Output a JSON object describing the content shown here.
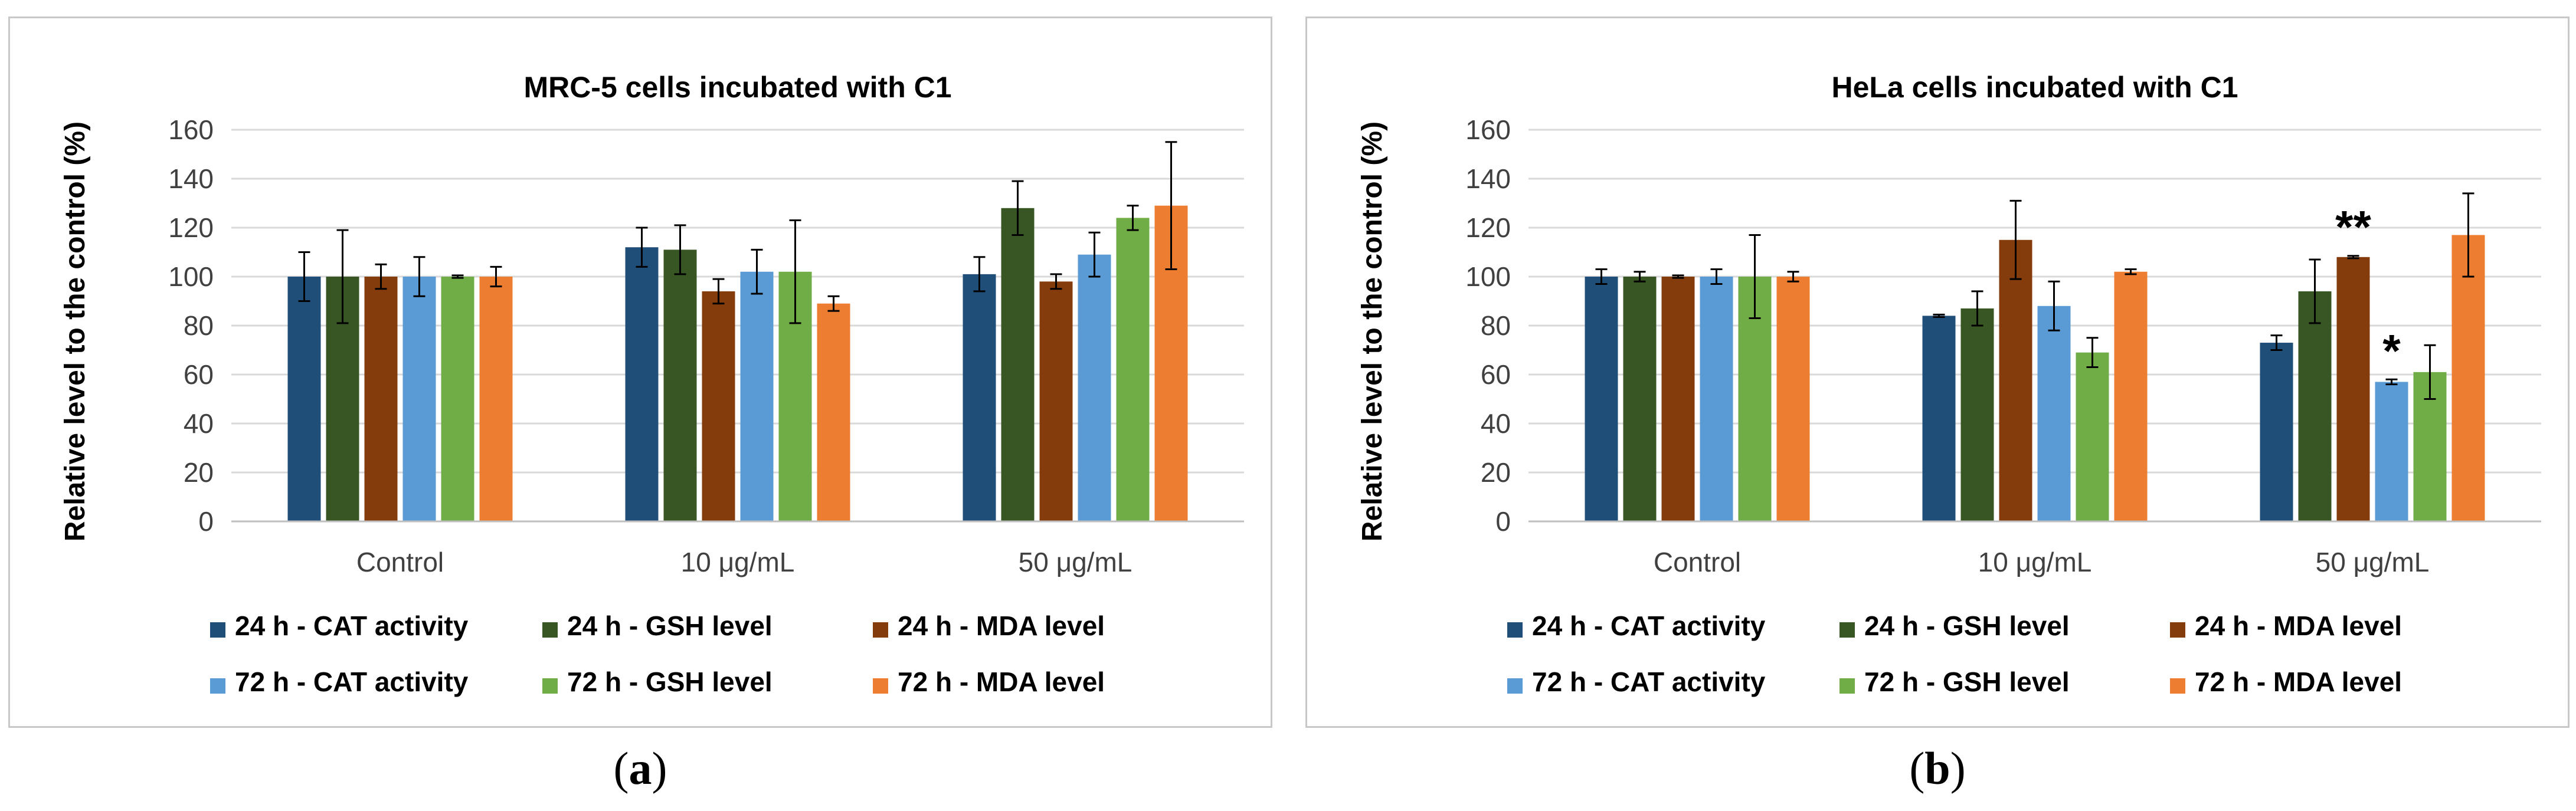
{
  "figure": {
    "captions": [
      {
        "open": "(",
        "letter": "a",
        "close": ")"
      },
      {
        "open": "(",
        "letter": "b",
        "close": ")"
      }
    ]
  },
  "chart_data": [
    {
      "type": "bar",
      "title": "MRC-5 cells incubated with C1",
      "xlabel": "",
      "ylabel": "Relative level to the control (%)",
      "ylim": [
        0,
        160
      ],
      "yticks": [
        0,
        20,
        40,
        60,
        80,
        100,
        120,
        140,
        160
      ],
      "grid": true,
      "legend_position": "bottom",
      "categories": [
        "Control",
        "10 μg/mL",
        "50 μg/mL"
      ],
      "series": [
        {
          "name": "24 h - CAT activity",
          "color": "#1f4e79",
          "values": [
            100,
            112,
            101
          ],
          "errors": [
            10,
            8,
            7
          ]
        },
        {
          "name": "24 h - GSH level",
          "color": "#375623",
          "values": [
            100,
            111,
            128
          ],
          "errors": [
            19,
            10,
            11
          ]
        },
        {
          "name": "24 h - MDA level",
          "color": "#843c0c",
          "values": [
            100,
            94,
            98
          ],
          "errors": [
            5,
            5,
            3
          ]
        },
        {
          "name": "72 h - CAT activity",
          "color": "#5b9bd5",
          "values": [
            100,
            102,
            109
          ],
          "errors": [
            8,
            9,
            9
          ]
        },
        {
          "name": "72 h - GSH level",
          "color": "#70ad47",
          "values": [
            100,
            102,
            124
          ],
          "errors": [
            0.5,
            21,
            5
          ]
        },
        {
          "name": "72 h - MDA level",
          "color": "#ed7d31",
          "values": [
            100,
            89,
            129
          ],
          "errors": [
            4,
            3,
            26
          ]
        }
      ],
      "annotations": []
    },
    {
      "type": "bar",
      "title": "HeLa cells incubated with C1",
      "xlabel": "",
      "ylabel": "Relative level to the control (%)",
      "ylim": [
        0,
        160
      ],
      "yticks": [
        0,
        20,
        40,
        60,
        80,
        100,
        120,
        140,
        160
      ],
      "grid": true,
      "legend_position": "bottom",
      "categories": [
        "Control",
        "10 μg/mL",
        "50 μg/mL"
      ],
      "series": [
        {
          "name": "24 h - CAT activity",
          "color": "#1f4e79",
          "values": [
            100,
            84,
            73
          ],
          "errors": [
            3,
            0.5,
            3
          ]
        },
        {
          "name": "24 h - GSH level",
          "color": "#375623",
          "values": [
            100,
            87,
            94
          ],
          "errors": [
            2,
            7,
            13
          ]
        },
        {
          "name": "24 h - MDA level",
          "color": "#843c0c",
          "values": [
            100,
            115,
            108
          ],
          "errors": [
            0.5,
            16,
            0.5
          ]
        },
        {
          "name": "72 h - CAT activity",
          "color": "#5b9bd5",
          "values": [
            100,
            88,
            57
          ],
          "errors": [
            3,
            10,
            1
          ]
        },
        {
          "name": "72 h - GSH level",
          "color": "#70ad47",
          "values": [
            100,
            69,
            61
          ],
          "errors": [
            17,
            6,
            11
          ]
        },
        {
          "name": "72 h - MDA level",
          "color": "#ed7d31",
          "values": [
            100,
            102,
            117
          ],
          "errors": [
            2,
            1,
            17
          ]
        }
      ],
      "annotations": [
        {
          "text": "**",
          "category": 2,
          "series": 2
        },
        {
          "text": "*",
          "category": 2,
          "series": 3
        }
      ]
    }
  ]
}
